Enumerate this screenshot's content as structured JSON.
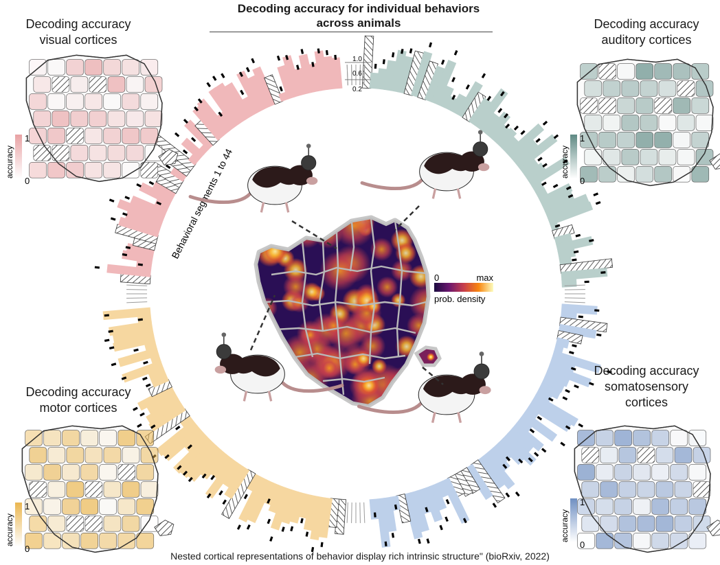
{
  "title": "Decoding accuracy for individual behaviors across animals",
  "title_lines": [
    "Decoding accuracy for individual behaviors",
    "across animals"
  ],
  "ring_label": "Behavioral segments 1 to 44",
  "ring_scale": [
    "1.0",
    "0.6",
    "0.2"
  ],
  "density_legend": {
    "min": "0",
    "max": "max",
    "label": "prob. density"
  },
  "panels": [
    {
      "id": "visual",
      "lines": [
        "Decoding accuracy",
        "visual cortices"
      ],
      "scale_max": "1",
      "scale_min": "0",
      "axis_label": "accuracy",
      "color": "#e8a2a4"
    },
    {
      "id": "auditory",
      "lines": [
        "Decoding accuracy",
        "auditory cortices"
      ],
      "scale_max": "1",
      "scale_min": "0",
      "axis_label": "accuracy",
      "color": "#5f8a84"
    },
    {
      "id": "motor",
      "lines": [
        "Decoding accuracy",
        "motor cortices"
      ],
      "scale_max": "1",
      "scale_min": "0",
      "axis_label": "accuracy",
      "color": "#eab650"
    },
    {
      "id": "somatosensory",
      "lines": [
        "Decoding accuracy",
        "somatosensory",
        "cortices"
      ],
      "scale_max": "1",
      "scale_min": "0",
      "axis_label": "accuracy",
      "color": "#6f8fc2"
    }
  ],
  "ring_colors": {
    "visual": "#f0b8ba",
    "auditory": "#b9cfcb",
    "motor": "#f6d7a0",
    "somatosensory": "#bdd0ea",
    "hatch": "#333333",
    "gray": "#9a9a9a"
  },
  "heatmap_colors": [
    "#1b0c41",
    "#4a0c6b",
    "#9c2963",
    "#d44842",
    "#f37819",
    "#fcc02b",
    "#fcfdbf"
  ],
  "footer": "Nested cortical representations of behavior display rich intrinsic structure\" (bioRxiv, 2022)"
}
